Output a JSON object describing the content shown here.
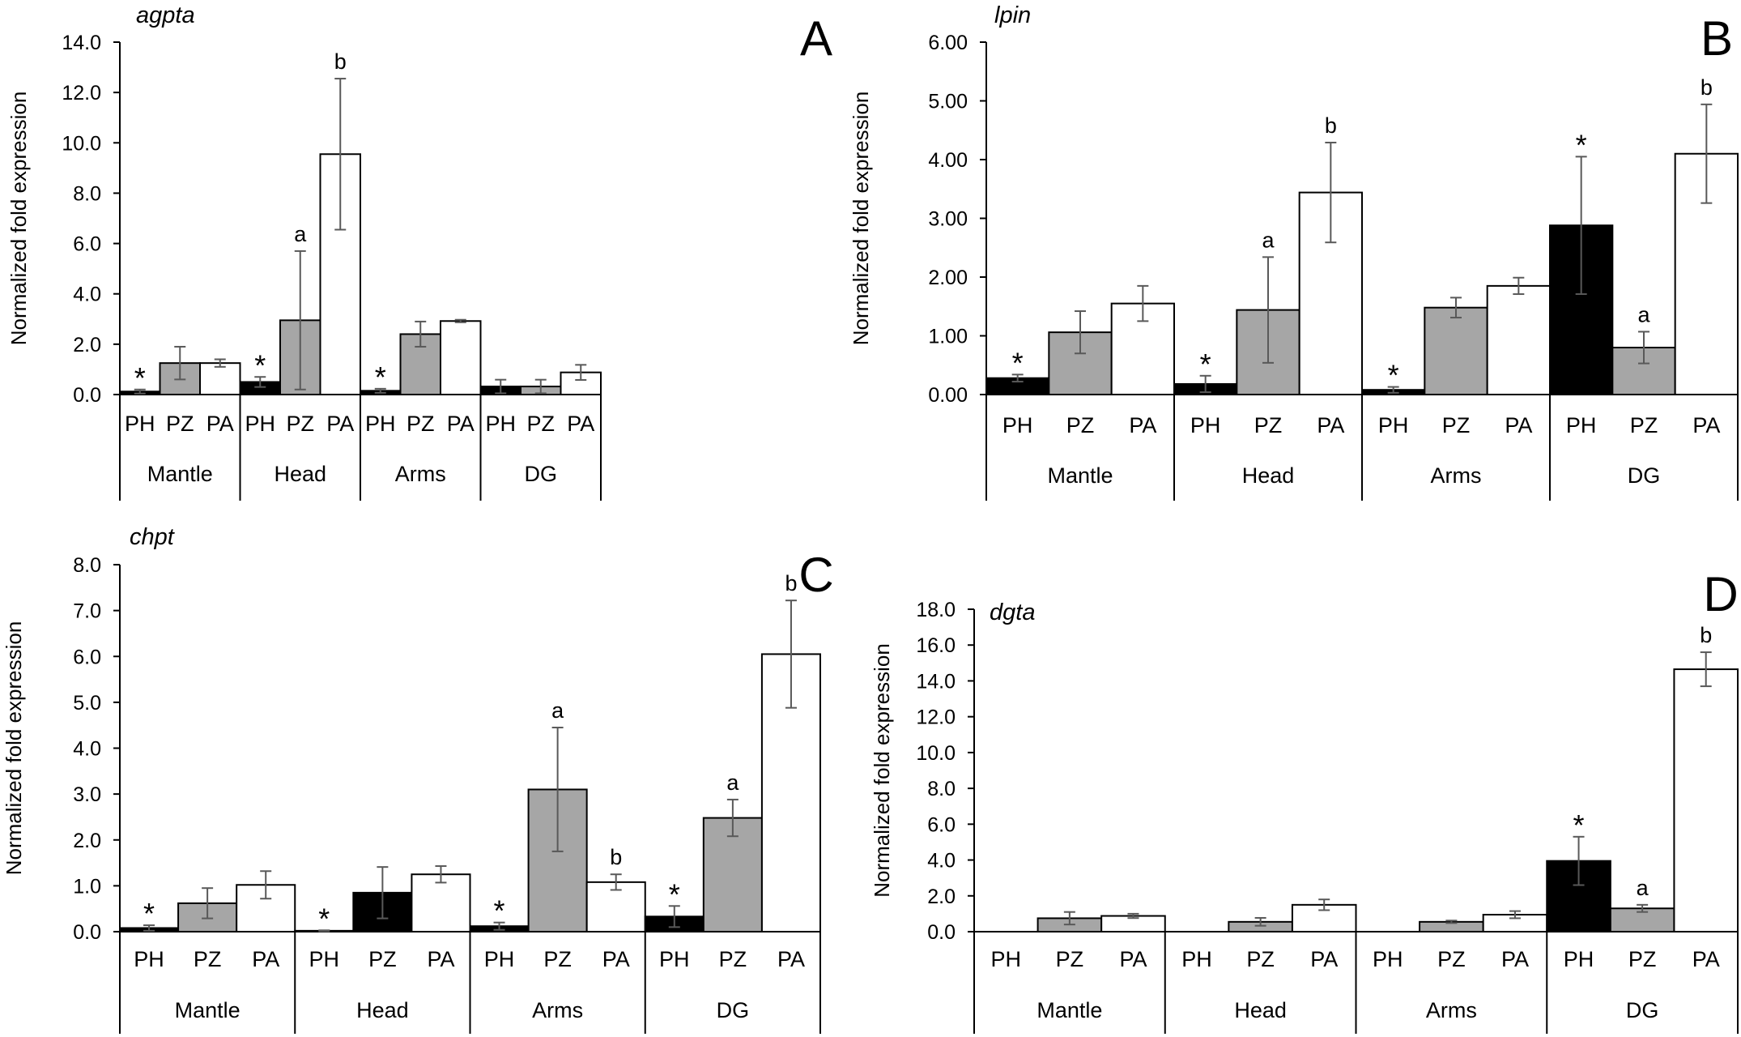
{
  "chart_data": [
    {
      "panel": "A",
      "type": "bar",
      "title": "agpta",
      "ylabel": "Normalized fold expression",
      "ylim": [
        0,
        14
      ],
      "yticks": [
        "0.0",
        "2.0",
        "4.0",
        "6.0",
        "8.0",
        "10.0",
        "12.0",
        "14.0"
      ],
      "tissues": [
        "Mantle",
        "Head",
        "Arms",
        "DG"
      ],
      "bars": [
        {
          "tissue": "Mantle",
          "group": "PH",
          "value": 0.12,
          "err": 0.08,
          "mark": "*"
        },
        {
          "tissue": "Mantle",
          "group": "PZ",
          "value": 1.25,
          "err": 0.65,
          "mark": ""
        },
        {
          "tissue": "Mantle",
          "group": "PA",
          "value": 1.25,
          "err": 0.15,
          "mark": ""
        },
        {
          "tissue": "Head",
          "group": "PH",
          "value": 0.5,
          "err": 0.2,
          "mark": "*"
        },
        {
          "tissue": "Head",
          "group": "PZ",
          "value": 2.95,
          "err": 2.75,
          "mark": "a"
        },
        {
          "tissue": "Head",
          "group": "PA",
          "value": 9.55,
          "err": 3.0,
          "mark": "b"
        },
        {
          "tissue": "Arms",
          "group": "PH",
          "value": 0.15,
          "err": 0.08,
          "mark": "*"
        },
        {
          "tissue": "Arms",
          "group": "PZ",
          "value": 2.4,
          "err": 0.5,
          "mark": ""
        },
        {
          "tissue": "Arms",
          "group": "PA",
          "value": 2.92,
          "err": 0.05,
          "mark": ""
        },
        {
          "tissue": "DG",
          "group": "PH",
          "value": 0.32,
          "err": 0.27,
          "mark": ""
        },
        {
          "tissue": "DG",
          "group": "PZ",
          "value": 0.32,
          "err": 0.27,
          "mark": ""
        },
        {
          "tissue": "DG",
          "group": "PA",
          "value": 0.88,
          "err": 0.3,
          "mark": ""
        }
      ]
    },
    {
      "panel": "B",
      "type": "bar",
      "title": "lpin",
      "ylabel": "Normalized fold expression",
      "ylim": [
        0,
        6
      ],
      "yticks": [
        "0.00",
        "1.00",
        "2.00",
        "3.00",
        "4.00",
        "5.00",
        "6.00"
      ],
      "tissues": [
        "Mantle",
        "Head",
        "Arms",
        "DG"
      ],
      "bars": [
        {
          "tissue": "Mantle",
          "group": "PH",
          "value": 0.28,
          "err": 0.06,
          "mark": "*"
        },
        {
          "tissue": "Mantle",
          "group": "PZ",
          "value": 1.06,
          "err": 0.36,
          "mark": ""
        },
        {
          "tissue": "Mantle",
          "group": "PA",
          "value": 1.55,
          "err": 0.3,
          "mark": ""
        },
        {
          "tissue": "Head",
          "group": "PH",
          "value": 0.18,
          "err": 0.14,
          "mark": "*"
        },
        {
          "tissue": "Head",
          "group": "PZ",
          "value": 1.44,
          "err": 0.9,
          "mark": "a"
        },
        {
          "tissue": "Head",
          "group": "PA",
          "value": 3.44,
          "err": 0.85,
          "mark": "b"
        },
        {
          "tissue": "Arms",
          "group": "PH",
          "value": 0.08,
          "err": 0.05,
          "mark": "*"
        },
        {
          "tissue": "Arms",
          "group": "PZ",
          "value": 1.48,
          "err": 0.17,
          "mark": ""
        },
        {
          "tissue": "Arms",
          "group": "PA",
          "value": 1.85,
          "err": 0.14,
          "mark": ""
        },
        {
          "tissue": "DG",
          "group": "PH",
          "value": 2.88,
          "err": 1.17,
          "mark": "*"
        },
        {
          "tissue": "DG",
          "group": "PZ",
          "value": 0.8,
          "err": 0.27,
          "mark": "a"
        },
        {
          "tissue": "DG",
          "group": "PA",
          "value": 4.1,
          "err": 0.84,
          "mark": "b"
        }
      ]
    },
    {
      "panel": "C",
      "type": "bar",
      "title": "chpt",
      "ylabel": "Normalized fold expression",
      "ylim": [
        0,
        8
      ],
      "yticks": [
        "0.0",
        "1.0",
        "2.0",
        "3.0",
        "4.0",
        "5.0",
        "6.0",
        "7.0",
        "8.0"
      ],
      "tissues": [
        "Mantle",
        "Head",
        "Arms",
        "DG"
      ],
      "bars": [
        {
          "tissue": "Mantle",
          "group": "PH",
          "value": 0.08,
          "err": 0.06,
          "mark": "*"
        },
        {
          "tissue": "Mantle",
          "group": "PZ",
          "value": 0.62,
          "err": 0.33,
          "mark": ""
        },
        {
          "tissue": "Mantle",
          "group": "PA",
          "value": 1.02,
          "err": 0.3,
          "mark": ""
        },
        {
          "tissue": "Head",
          "group": "PH",
          "value": 0.02,
          "err": 0.01,
          "mark": "*"
        },
        {
          "tissue": "Head",
          "group": "PZ",
          "value": 0.85,
          "err": 0.56,
          "mark": "",
          "shade": "black"
        },
        {
          "tissue": "Head",
          "group": "PA",
          "value": 1.25,
          "err": 0.18,
          "mark": ""
        },
        {
          "tissue": "Arms",
          "group": "PH",
          "value": 0.12,
          "err": 0.08,
          "mark": "*"
        },
        {
          "tissue": "Arms",
          "group": "PZ",
          "value": 3.1,
          "err": 1.35,
          "mark": "a"
        },
        {
          "tissue": "Arms",
          "group": "PA",
          "value": 1.08,
          "err": 0.17,
          "mark": "b"
        },
        {
          "tissue": "DG",
          "group": "PH",
          "value": 0.33,
          "err": 0.23,
          "mark": "*"
        },
        {
          "tissue": "DG",
          "group": "PZ",
          "value": 2.48,
          "err": 0.4,
          "mark": "a"
        },
        {
          "tissue": "DG",
          "group": "PA",
          "value": 6.05,
          "err": 1.17,
          "mark": "b"
        }
      ]
    },
    {
      "panel": "D",
      "type": "bar",
      "title": "dgta",
      "ylabel": "Normalized fold expression",
      "ylim": [
        0,
        18
      ],
      "yticks": [
        "0.0",
        "2.0",
        "4.0",
        "6.0",
        "8.0",
        "10.0",
        "12.0",
        "14.0",
        "16.0",
        "18.0"
      ],
      "tissues": [
        "Mantle",
        "Head",
        "Arms",
        "DG"
      ],
      "bars": [
        {
          "tissue": "Mantle",
          "group": "PH",
          "value": 0,
          "err": 0,
          "mark": ""
        },
        {
          "tissue": "Mantle",
          "group": "PZ",
          "value": 0.75,
          "err": 0.35,
          "mark": ""
        },
        {
          "tissue": "Mantle",
          "group": "PA",
          "value": 0.88,
          "err": 0.12,
          "mark": ""
        },
        {
          "tissue": "Head",
          "group": "PH",
          "value": 0,
          "err": 0,
          "mark": ""
        },
        {
          "tissue": "Head",
          "group": "PZ",
          "value": 0.55,
          "err": 0.22,
          "mark": ""
        },
        {
          "tissue": "Head",
          "group": "PA",
          "value": 1.5,
          "err": 0.3,
          "mark": ""
        },
        {
          "tissue": "Arms",
          "group": "PH",
          "value": 0,
          "err": 0,
          "mark": ""
        },
        {
          "tissue": "Arms",
          "group": "PZ",
          "value": 0.55,
          "err": 0.07,
          "mark": ""
        },
        {
          "tissue": "Arms",
          "group": "PA",
          "value": 0.95,
          "err": 0.2,
          "mark": ""
        },
        {
          "tissue": "DG",
          "group": "PH",
          "value": 3.95,
          "err": 1.35,
          "mark": "*"
        },
        {
          "tissue": "DG",
          "group": "PZ",
          "value": 1.3,
          "err": 0.2,
          "mark": "a"
        },
        {
          "tissue": "DG",
          "group": "PA",
          "value": 14.65,
          "err": 0.95,
          "mark": "b"
        }
      ]
    }
  ],
  "colors": {
    "PH": "#000000",
    "PZ": "#a6a6a6",
    "PA": "#ffffff",
    "axis": "#000000",
    "errorbar": "#595959"
  }
}
